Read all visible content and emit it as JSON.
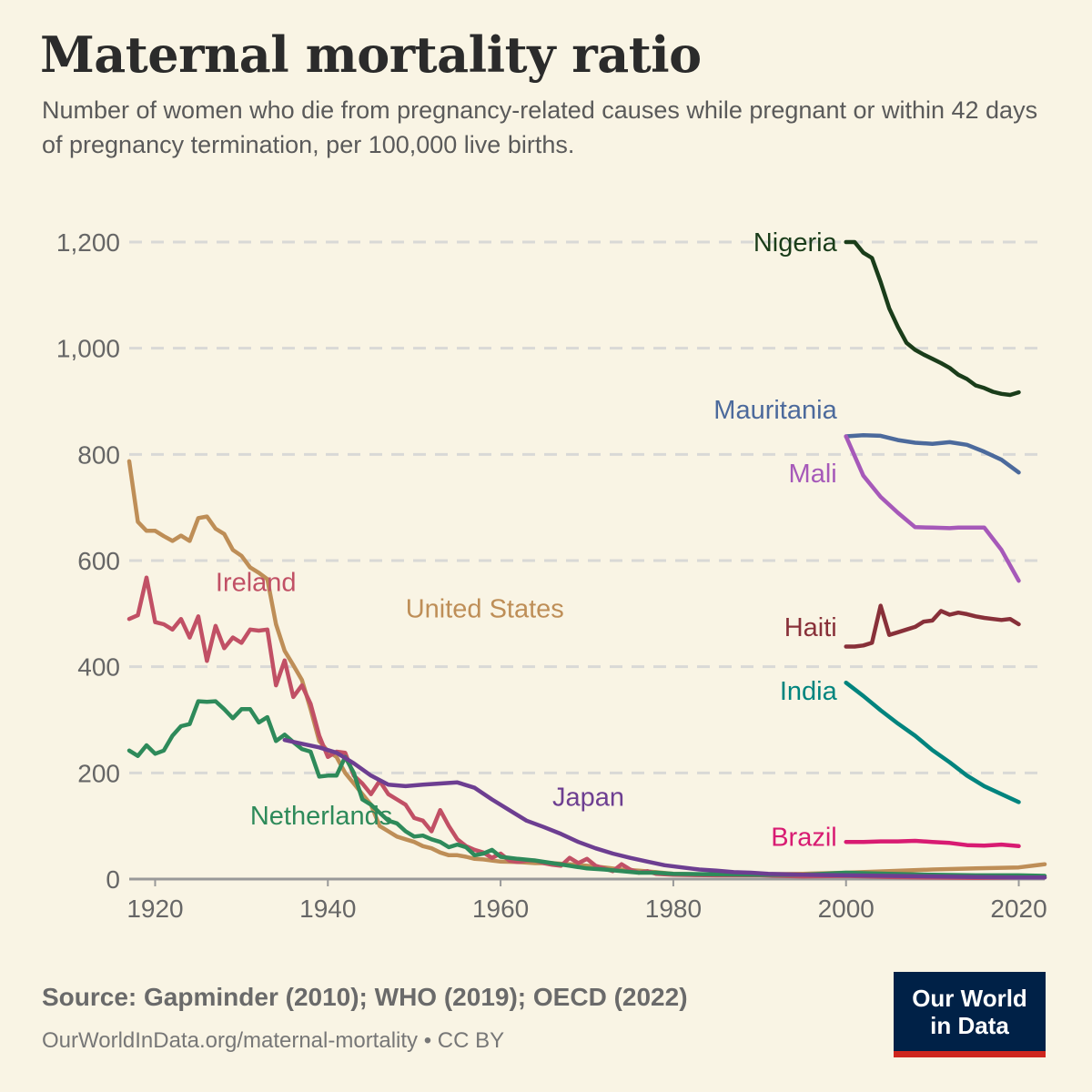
{
  "header": {
    "title": "Maternal mortality ratio",
    "subtitle": "Number of women who die from pregnancy-related causes while pregnant or within 42 days of pregnancy termination, per 100,000 live births."
  },
  "footer": {
    "source": "Source: Gapminder (2010); WHO (2019); OECD (2022)",
    "url": "OurWorldInData.org/maternal-mortality • CC BY",
    "logo_line1": "Our World",
    "logo_line2": "in Data"
  },
  "chart_data": {
    "type": "line",
    "title": "Maternal mortality ratio",
    "xlabel": "",
    "ylabel": "",
    "xlim": [
      1917,
      2023
    ],
    "ylim": [
      0,
      1200
    ],
    "grid": true,
    "yticks": [
      0,
      200,
      400,
      600,
      800,
      1000,
      1200
    ],
    "ytick_labels": [
      "0",
      "200",
      "400",
      "600",
      "800",
      "1,000",
      "1,200"
    ],
    "xticks": [
      1920,
      1940,
      1960,
      1980,
      2000,
      2020
    ],
    "xtick_labels": [
      "1920",
      "1940",
      "1960",
      "1980",
      "2000",
      "2020"
    ],
    "series": [
      {
        "name": "United States",
        "color": "#be8e57",
        "label_side": "inline",
        "x": [
          1917,
          1918,
          1919,
          1920,
          1921,
          1922,
          1923,
          1924,
          1925,
          1926,
          1927,
          1928,
          1929,
          1930,
          1931,
          1932,
          1933,
          1934,
          1935,
          1936,
          1937,
          1938,
          1939,
          1940,
          1941,
          1942,
          1943,
          1944,
          1945,
          1946,
          1947,
          1948,
          1949,
          1950,
          1951,
          1952,
          1953,
          1954,
          1955,
          1956,
          1957,
          1958,
          1959,
          1960,
          1962,
          1964,
          1966,
          1968,
          1970,
          1972,
          1974,
          1976,
          1978,
          1980,
          1985,
          1990,
          1995,
          2000,
          2005,
          2010,
          2015,
          2020,
          2023
        ],
        "y": [
          787,
          673,
          656,
          656,
          646,
          637,
          647,
          637,
          680,
          683,
          660,
          650,
          620,
          609,
          587,
          577,
          565,
          480,
          430,
          403,
          375,
          320,
          260,
          241,
          230,
          200,
          180,
          160,
          140,
          100,
          90,
          80,
          75,
          70,
          62,
          58,
          50,
          45,
          45,
          42,
          38,
          37,
          35,
          33,
          32,
          30,
          30,
          28,
          25,
          22,
          18,
          16,
          13,
          10,
          8,
          9,
          10,
          12,
          15,
          18,
          20,
          22,
          28
        ]
      },
      {
        "name": "Ireland",
        "color": "#c15065",
        "label_side": "inline",
        "x": [
          1917,
          1918,
          1919,
          1920,
          1921,
          1922,
          1923,
          1924,
          1925,
          1926,
          1927,
          1928,
          1929,
          1930,
          1931,
          1932,
          1933,
          1934,
          1935,
          1936,
          1937,
          1938,
          1939,
          1940,
          1941,
          1942,
          1943,
          1944,
          1945,
          1946,
          1947,
          1948,
          1949,
          1950,
          1951,
          1952,
          1953,
          1954,
          1955,
          1956,
          1957,
          1958,
          1959,
          1960,
          1961,
          1962,
          1963,
          1964,
          1965,
          1966,
          1967,
          1968,
          1969,
          1970,
          1971,
          1972,
          1973,
          1974,
          1975,
          1976,
          1977,
          1978,
          1980,
          1985,
          1990,
          1995,
          2000,
          2005,
          2010,
          2015,
          2020,
          2023
        ],
        "y": [
          490,
          497,
          568,
          484,
          480,
          470,
          490,
          455,
          495,
          411,
          477,
          435,
          455,
          445,
          470,
          468,
          470,
          365,
          412,
          343,
          365,
          330,
          270,
          230,
          240,
          238,
          195,
          180,
          160,
          185,
          160,
          150,
          140,
          115,
          110,
          90,
          130,
          100,
          75,
          62,
          55,
          50,
          40,
          48,
          35,
          32,
          35,
          35,
          30,
          27,
          25,
          40,
          30,
          38,
          25,
          20,
          15,
          28,
          18,
          12,
          15,
          10,
          8,
          7,
          7,
          5,
          6,
          4,
          3,
          2,
          3,
          3
        ]
      },
      {
        "name": "Netherlands",
        "color": "#2e8a5a",
        "label_side": "inline",
        "x": [
          1917,
          1918,
          1919,
          1920,
          1921,
          1922,
          1923,
          1924,
          1925,
          1926,
          1927,
          1928,
          1929,
          1930,
          1931,
          1932,
          1933,
          1934,
          1935,
          1936,
          1937,
          1938,
          1939,
          1940,
          1941,
          1942,
          1943,
          1944,
          1945,
          1946,
          1947,
          1948,
          1949,
          1950,
          1951,
          1952,
          1953,
          1954,
          1955,
          1956,
          1957,
          1958,
          1959,
          1960,
          1962,
          1964,
          1966,
          1968,
          1970,
          1972,
          1974,
          1976,
          1978,
          1980,
          1985,
          1990,
          1995,
          2000,
          2005,
          2010,
          2015,
          2020,
          2023
        ],
        "y": [
          242,
          232,
          252,
          236,
          242,
          270,
          288,
          292,
          335,
          334,
          335,
          320,
          303,
          320,
          320,
          295,
          305,
          260,
          272,
          258,
          245,
          240,
          193,
          195,
          195,
          230,
          200,
          150,
          140,
          125,
          110,
          105,
          90,
          80,
          82,
          75,
          70,
          60,
          65,
          60,
          45,
          48,
          55,
          42,
          38,
          35,
          30,
          25,
          20,
          18,
          15,
          12,
          12,
          10,
          9,
          8,
          8,
          12,
          10,
          8,
          7,
          7,
          6
        ]
      },
      {
        "name": "Japan",
        "color": "#6d3e91",
        "label_side": "inline",
        "x": [
          1935,
          1937,
          1939,
          1941,
          1943,
          1945,
          1947,
          1949,
          1951,
          1953,
          1955,
          1957,
          1959,
          1961,
          1963,
          1965,
          1967,
          1969,
          1971,
          1973,
          1975,
          1977,
          1979,
          1981,
          1983,
          1985,
          1987,
          1989,
          1991,
          1995,
          2000,
          2005,
          2010,
          2015,
          2020,
          2023
        ],
        "y": [
          262,
          255,
          248,
          238,
          218,
          195,
          178,
          175,
          178,
          180,
          182,
          172,
          150,
          130,
          110,
          98,
          85,
          70,
          58,
          48,
          40,
          33,
          26,
          22,
          18,
          16,
          13,
          12,
          10,
          8,
          7,
          6,
          5,
          4,
          3,
          3
        ]
      },
      {
        "name": "Nigeria",
        "color": "#1a3d1a",
        "label_side": "left",
        "x": [
          2000,
          2001,
          2002,
          2003,
          2004,
          2005,
          2006,
          2007,
          2008,
          2009,
          2010,
          2011,
          2012,
          2013,
          2014,
          2015,
          2016,
          2017,
          2018,
          2019,
          2020
        ],
        "y": [
          1200,
          1200,
          1180,
          1170,
          1125,
          1075,
          1040,
          1010,
          997,
          988,
          980,
          972,
          963,
          950,
          942,
          930,
          925,
          918,
          914,
          912,
          917
        ]
      },
      {
        "name": "Mauritania",
        "color": "#4c6a9c",
        "label_side": "left",
        "x": [
          2000,
          2002,
          2004,
          2006,
          2008,
          2010,
          2012,
          2014,
          2016,
          2018,
          2020
        ],
        "y": [
          834,
          836,
          835,
          827,
          822,
          820,
          823,
          818,
          805,
          790,
          766
        ]
      },
      {
        "name": "Mali",
        "color": "#a659b9",
        "label_side": "left",
        "x": [
          2000,
          2002,
          2004,
          2006,
          2008,
          2010,
          2012,
          2013,
          2014,
          2016,
          2018,
          2020
        ],
        "y": [
          834,
          760,
          720,
          690,
          663,
          662,
          661,
          662,
          662,
          662,
          620,
          562
        ]
      },
      {
        "name": "Haiti",
        "color": "#883039",
        "label_side": "left",
        "x": [
          2000,
          2001,
          2002,
          2003,
          2004,
          2005,
          2006,
          2007,
          2008,
          2009,
          2010,
          2011,
          2012,
          2013,
          2014,
          2015,
          2016,
          2017,
          2018,
          2019,
          2020
        ],
        "y": [
          438,
          438,
          440,
          445,
          515,
          460,
          465,
          470,
          475,
          485,
          487,
          505,
          498,
          502,
          499,
          495,
          492,
          490,
          488,
          490,
          480
        ]
      },
      {
        "name": "India",
        "color": "#00847e",
        "label_side": "left",
        "x": [
          2000,
          2002,
          2004,
          2006,
          2008,
          2010,
          2012,
          2014,
          2016,
          2018,
          2020
        ],
        "y": [
          370,
          345,
          318,
          293,
          270,
          243,
          220,
          195,
          175,
          160,
          145
        ]
      },
      {
        "name": "Brazil",
        "color": "#d81b72",
        "label_side": "left",
        "x": [
          2000,
          2002,
          2004,
          2006,
          2008,
          2010,
          2012,
          2014,
          2016,
          2018,
          2020
        ],
        "y": [
          70,
          70,
          71,
          71,
          72,
          70,
          68,
          64,
          63,
          65,
          62
        ]
      }
    ],
    "labels": {
      "Nigeria": {
        "x": 2000,
        "y": 1200
      },
      "Mauritania": {
        "x": 2000,
        "y": 885
      },
      "Mali": {
        "x": 2000,
        "y": 765
      },
      "Haiti": {
        "x": 2000,
        "y": 475
      },
      "India": {
        "x": 2000,
        "y": 355
      },
      "Brazil": {
        "x": 2000,
        "y": 80
      },
      "Ireland": {
        "x": 1927,
        "y": 560
      },
      "United States": {
        "x": 1949,
        "y": 510
      },
      "Japan": {
        "x": 1966,
        "y": 155
      },
      "Netherlands": {
        "x": 1931,
        "y": 120
      }
    }
  }
}
